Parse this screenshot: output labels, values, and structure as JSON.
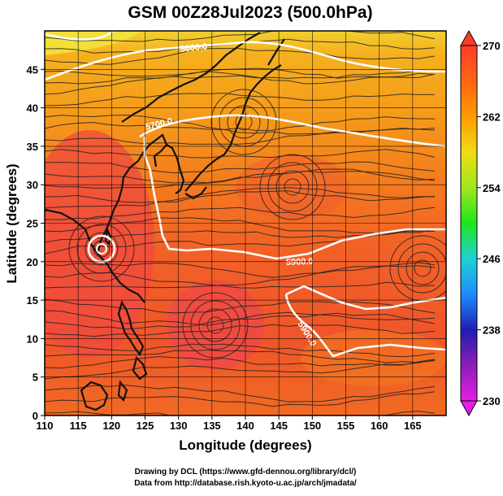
{
  "title": "GSM 00Z28Jul2023 (500.0hPa)",
  "xaxis": {
    "label": "Longitude (degrees)",
    "range": [
      110,
      170
    ],
    "ticks": [
      "110",
      "115",
      "120",
      "125",
      "130",
      "135",
      "140",
      "145",
      "150",
      "155",
      "160",
      "165"
    ]
  },
  "yaxis": {
    "label": "Latitude  (degrees)",
    "range": [
      0,
      50
    ],
    "ticks": [
      "0",
      "5",
      "10",
      "15",
      "20",
      "25",
      "30",
      "35",
      "40",
      "45"
    ]
  },
  "grid": true,
  "colorbar": {
    "range": [
      230,
      270
    ],
    "ticks": [
      "230",
      "238",
      "246",
      "254",
      "262",
      "270"
    ],
    "colors": [
      "#e61ee6",
      "#8c1eb4",
      "#1e1eb4",
      "#1e8cff",
      "#1ed2d2",
      "#1ee61e",
      "#a0e61e",
      "#f0dc14",
      "#ff9b00",
      "#ff6414",
      "#ff3c28",
      "#fa5a5a"
    ]
  },
  "contours": [
    {
      "label": "5800.0"
    },
    {
      "label": "5700.0"
    },
    {
      "label": "5900.0"
    },
    {
      "label": "5900.0"
    }
  ],
  "credits": {
    "line1": "Drawing by DCL (https://www.gfd-dennou.org/library/dcl/)",
    "line2": "Data from http://database.rish.kyoto-u.ac.jp/arch/jmadata/"
  },
  "field_colors": {
    "cold_north": "#f6e236",
    "mid": "#f59a1a",
    "warm": "#f26226",
    "hot": "#f04a3c",
    "coast": "#111111"
  }
}
